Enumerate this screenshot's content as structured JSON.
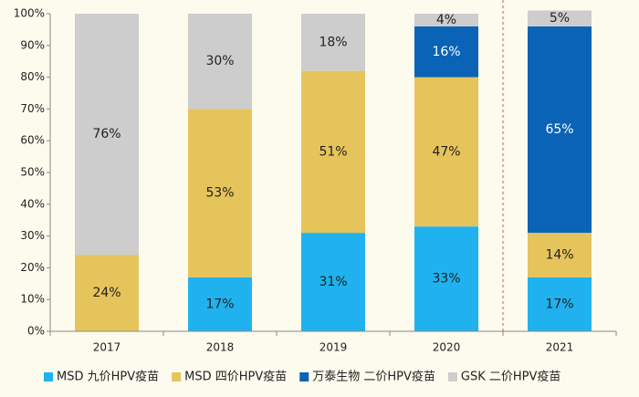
{
  "chart_data": {
    "type": "stacked_bar",
    "categories": [
      "2017",
      "2018",
      "2019",
      "2020",
      "2021"
    ],
    "series": [
      {
        "name": "MSD 九价HPV疫苗",
        "color": "#1fb2ee",
        "values": [
          0,
          17,
          31,
          33,
          17
        ],
        "value_labels": [
          null,
          "17%",
          "31%",
          "33%",
          "17%"
        ]
      },
      {
        "name": "MSD 四价HPV疫苗",
        "color": "#e6c45c",
        "values": [
          24,
          53,
          51,
          47,
          14
        ],
        "value_labels": [
          "24%",
          "53%",
          "51%",
          "47%",
          "14%"
        ]
      },
      {
        "name": "万泰生物 二价HPV疫苗",
        "color": "#0a63b6",
        "values": [
          0,
          0,
          0,
          16,
          65
        ],
        "value_labels": [
          null,
          null,
          null,
          "16%",
          "65%"
        ]
      },
      {
        "name": "GSK 二价HPV疫苗",
        "color": "#cdcdcd",
        "values": [
          76,
          30,
          18,
          4,
          5
        ],
        "value_labels": [
          "76%",
          "30%",
          "18%",
          "4%",
          "5%"
        ]
      }
    ],
    "ylim": [
      0,
      100
    ],
    "yticks": [
      {
        "value": 0,
        "label": "0%"
      },
      {
        "value": 10,
        "label": "10%"
      },
      {
        "value": 20,
        "label": "20%"
      },
      {
        "value": 30,
        "label": "30%"
      },
      {
        "value": 40,
        "label": "40%"
      },
      {
        "value": 50,
        "label": "50%"
      },
      {
        "value": 60,
        "label": "60%"
      },
      {
        "value": 70,
        "label": "70%"
      },
      {
        "value": 80,
        "label": "80%"
      },
      {
        "value": 90,
        "label": "90%"
      },
      {
        "value": 100,
        "label": "100%"
      }
    ],
    "grid": false,
    "legend": "bottom"
  }
}
